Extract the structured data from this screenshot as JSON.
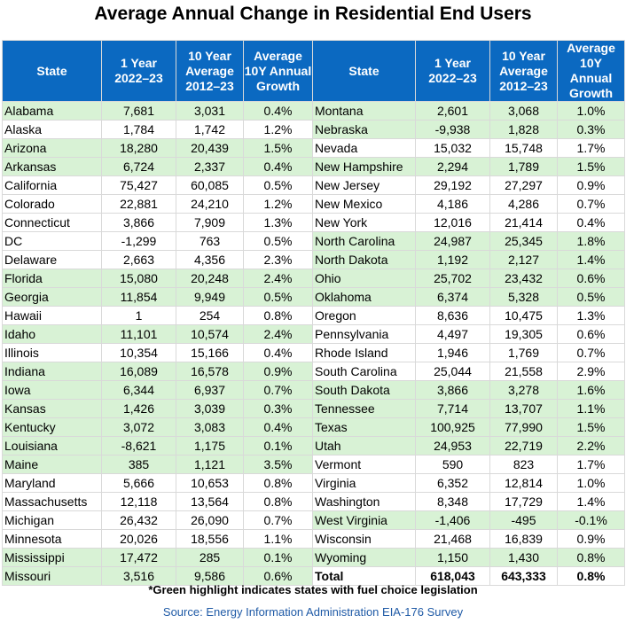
{
  "title": "Average Annual Change in Residential End Users",
  "headers": [
    "State",
    "1 Year\n2022–23",
    "10 Year\nAverage\n2012–23",
    "Average\n10Y Annual\nGrowth",
    "State",
    "1 Year\n2022–23",
    "10 Year\nAverage\n2012–23",
    "Average\n10Y Annual\nGrowth"
  ],
  "left_rows": [
    {
      "state": "Alabama",
      "y1": "7,681",
      "y10": "3,031",
      "growth": "0.4%",
      "green": true
    },
    {
      "state": "Alaska",
      "y1": "1,784",
      "y10": "1,742",
      "growth": "1.2%",
      "green": false
    },
    {
      "state": "Arizona",
      "y1": "18,280",
      "y10": "20,439",
      "growth": "1.5%",
      "green": true
    },
    {
      "state": "Arkansas",
      "y1": "6,724",
      "y10": "2,337",
      "growth": "0.4%",
      "green": true
    },
    {
      "state": "California",
      "y1": "75,427",
      "y10": "60,085",
      "growth": "0.5%",
      "green": false
    },
    {
      "state": "Colorado",
      "y1": "22,881",
      "y10": "24,210",
      "growth": "1.2%",
      "green": false
    },
    {
      "state": "Connecticut",
      "y1": "3,866",
      "y10": "7,909",
      "growth": "1.3%",
      "green": false
    },
    {
      "state": "DC",
      "y1": "-1,299",
      "y10": "763",
      "growth": "0.5%",
      "green": false
    },
    {
      "state": "Delaware",
      "y1": "2,663",
      "y10": "4,356",
      "growth": "2.3%",
      "green": false
    },
    {
      "state": "Florida",
      "y1": "15,080",
      "y10": "20,248",
      "growth": "2.4%",
      "green": true
    },
    {
      "state": "Georgia",
      "y1": "11,854",
      "y10": "9,949",
      "growth": "0.5%",
      "green": true
    },
    {
      "state": "Hawaii",
      "y1": "1",
      "y10": "254",
      "growth": "0.8%",
      "green": false
    },
    {
      "state": "Idaho",
      "y1": "11,101",
      "y10": "10,574",
      "growth": "2.4%",
      "green": true
    },
    {
      "state": "Illinois",
      "y1": "10,354",
      "y10": "15,166",
      "growth": "0.4%",
      "green": false
    },
    {
      "state": "Indiana",
      "y1": "16,089",
      "y10": "16,578",
      "growth": "0.9%",
      "green": true
    },
    {
      "state": "Iowa",
      "y1": "6,344",
      "y10": "6,937",
      "growth": "0.7%",
      "green": true
    },
    {
      "state": "Kansas",
      "y1": "1,426",
      "y10": "3,039",
      "growth": "0.3%",
      "green": true
    },
    {
      "state": "Kentucky",
      "y1": "3,072",
      "y10": "3,083",
      "growth": "0.4%",
      "green": true
    },
    {
      "state": "Louisiana",
      "y1": "-8,621",
      "y10": "1,175",
      "growth": "0.1%",
      "green": true
    },
    {
      "state": "Maine",
      "y1": "385",
      "y10": "1,121",
      "growth": "3.5%",
      "green": true
    },
    {
      "state": "Maryland",
      "y1": "5,666",
      "y10": "10,653",
      "growth": "0.8%",
      "green": false
    },
    {
      "state": "Massachusetts",
      "y1": "12,118",
      "y10": "13,564",
      "growth": "0.8%",
      "green": false
    },
    {
      "state": "Michigan",
      "y1": "26,432",
      "y10": "26,090",
      "growth": "0.7%",
      "green": false
    },
    {
      "state": "Minnesota",
      "y1": "20,026",
      "y10": "18,556",
      "growth": "1.1%",
      "green": false
    },
    {
      "state": "Mississippi",
      "y1": "17,472",
      "y10": "285",
      "growth": "0.1%",
      "green": true
    },
    {
      "state": "Missouri",
      "y1": "3,516",
      "y10": "9,586",
      "growth": "0.6%",
      "green": true
    }
  ],
  "right_rows": [
    {
      "state": "Montana",
      "y1": "2,601",
      "y10": "3,068",
      "growth": "1.0%",
      "green": true
    },
    {
      "state": "Nebraska",
      "y1": "-9,938",
      "y10": "1,828",
      "growth": "0.3%",
      "green": true
    },
    {
      "state": "Nevada",
      "y1": "15,032",
      "y10": "15,748",
      "growth": "1.7%",
      "green": false
    },
    {
      "state": "New Hampshire",
      "y1": "2,294",
      "y10": "1,789",
      "growth": "1.5%",
      "green": true
    },
    {
      "state": "New Jersey",
      "y1": "29,192",
      "y10": "27,297",
      "growth": "0.9%",
      "green": false
    },
    {
      "state": "New Mexico",
      "y1": "4,186",
      "y10": "4,286",
      "growth": "0.7%",
      "green": false
    },
    {
      "state": "New York",
      "y1": "12,016",
      "y10": "21,414",
      "growth": "0.4%",
      "green": false
    },
    {
      "state": "North Carolina",
      "y1": "24,987",
      "y10": "25,345",
      "growth": "1.8%",
      "green": true
    },
    {
      "state": "North Dakota",
      "y1": "1,192",
      "y10": "2,127",
      "growth": "1.4%",
      "green": true
    },
    {
      "state": "Ohio",
      "y1": "25,702",
      "y10": "23,432",
      "growth": "0.6%",
      "green": true
    },
    {
      "state": "Oklahoma",
      "y1": "6,374",
      "y10": "5,328",
      "growth": "0.5%",
      "green": true
    },
    {
      "state": "Oregon",
      "y1": "8,636",
      "y10": "10,475",
      "growth": "1.3%",
      "green": false
    },
    {
      "state": "Pennsylvania",
      "y1": "4,497",
      "y10": "19,305",
      "growth": "0.6%",
      "green": false
    },
    {
      "state": "Rhode Island",
      "y1": "1,946",
      "y10": "1,769",
      "growth": "0.7%",
      "green": false
    },
    {
      "state": "South Carolina",
      "y1": "25,044",
      "y10": "21,558",
      "growth": "2.9%",
      "green": false
    },
    {
      "state": "South Dakota",
      "y1": "3,866",
      "y10": "3,278",
      "growth": "1.6%",
      "green": true
    },
    {
      "state": "Tennessee",
      "y1": "7,714",
      "y10": "13,707",
      "growth": "1.1%",
      "green": true
    },
    {
      "state": "Texas",
      "y1": "100,925",
      "y10": "77,990",
      "growth": "1.5%",
      "green": true
    },
    {
      "state": "Utah",
      "y1": "24,953",
      "y10": "22,719",
      "growth": "2.2%",
      "green": true
    },
    {
      "state": "Vermont",
      "y1": "590",
      "y10": "823",
      "growth": "1.7%",
      "green": false
    },
    {
      "state": "Virginia",
      "y1": "6,352",
      "y10": "12,814",
      "growth": "1.0%",
      "green": false
    },
    {
      "state": "Washington",
      "y1": "8,348",
      "y10": "17,729",
      "growth": "1.4%",
      "green": false
    },
    {
      "state": "West Virginia",
      "y1": "-1,406",
      "y10": "-495",
      "growth": "-0.1%",
      "green": true
    },
    {
      "state": "Wisconsin",
      "y1": "21,468",
      "y10": "16,839",
      "growth": "0.9%",
      "green": false
    },
    {
      "state": "Wyoming",
      "y1": "1,150",
      "y10": "1,430",
      "growth": "0.8%",
      "green": true
    },
    {
      "state": "Total",
      "y1": "618,043",
      "y10": "643,333",
      "growth": "0.8%",
      "green": false,
      "total": true
    }
  ],
  "footnote": "*Green highlight indicates states with fuel choice legislation",
  "source": "Source: Energy Information Administration EIA-176 Survey",
  "colors": {
    "header_bg": "#0b69c1",
    "green_row": "#d8f2d5",
    "source_text": "#1f5aa6"
  }
}
